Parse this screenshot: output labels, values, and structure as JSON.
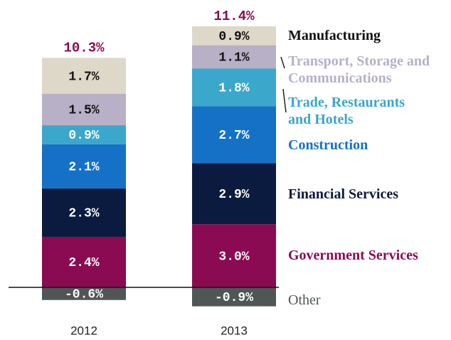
{
  "chart_data": {
    "type": "stacked_bar",
    "categories": [
      "2012",
      "2013"
    ],
    "series": [
      {
        "name": "Other",
        "color": "#505555",
        "values": [
          -0.6,
          -0.9
        ],
        "value_labels": [
          "-0.6%",
          "-0.9%"
        ]
      },
      {
        "name": "Government Services",
        "color": "#8a0b52",
        "values": [
          2.4,
          3.0
        ],
        "value_labels": [
          "2.4%",
          "3.0%"
        ]
      },
      {
        "name": "Financial Services",
        "color": "#0b1a3f",
        "values": [
          2.3,
          2.9
        ],
        "value_labels": [
          "2.3%",
          "2.9%"
        ]
      },
      {
        "name": "Construction",
        "color": "#1571c6",
        "values": [
          2.1,
          2.7
        ],
        "value_labels": [
          "2.1%",
          "2.7%"
        ]
      },
      {
        "name": "Trade, Restaurants and Hotels",
        "color": "#3aa7cb",
        "values": [
          0.9,
          1.8
        ],
        "value_labels": [
          "0.9%",
          "1.8%"
        ]
      },
      {
        "name": "Transport, Storage and Communications",
        "color": "#b8b0c6",
        "values": [
          1.5,
          1.1
        ],
        "value_labels": [
          "1.5%",
          "1.1%"
        ]
      },
      {
        "name": "Manufacturing",
        "color": "#ddd8c7",
        "values": [
          1.7,
          0.9
        ],
        "value_labels": [
          "1.7%",
          "0.9%"
        ]
      }
    ],
    "totals": [
      10.3,
      11.4
    ],
    "totals_labels": [
      "10.3%",
      "11.4%"
    ],
    "totals_color": "#8a0b52"
  }
}
